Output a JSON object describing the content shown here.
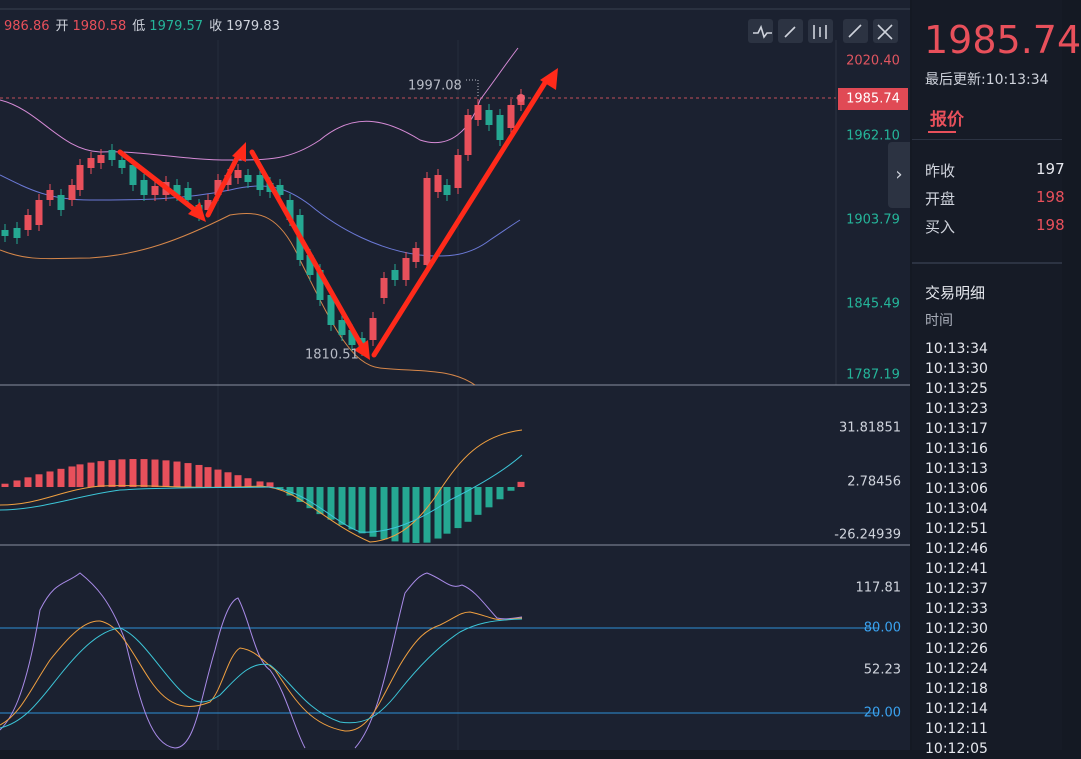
{
  "ohlc": [
    {
      "value": "986.86"
    },
    {
      "label": "开",
      "value": "1980.58"
    },
    {
      "label": "低",
      "value": "1979.57"
    },
    {
      "label": "收",
      "value": "1979.83"
    }
  ],
  "price_axis": [
    "2020.40",
    "1962.10",
    "1903.79",
    "1845.49",
    "1787.19"
  ],
  "current_price_tag": "1985.74",
  "annotations": {
    "high": "1997.08",
    "low": "1810.51"
  },
  "macd_axis": [
    "31.81851",
    "2.78456",
    "-26.24939"
  ],
  "kdj_axis": [
    "117.81",
    "80.00",
    "52.23",
    "20.00"
  ],
  "panel": {
    "price": "1985.74",
    "updated": "最后更新:10:13:34",
    "tab": "报价",
    "quotes": [
      {
        "label": "昨收",
        "value": "197"
      },
      {
        "label": "开盘",
        "value": "198"
      },
      {
        "label": "买入",
        "value": "198"
      }
    ],
    "detail_title": "交易明细",
    "detail_header": "时间",
    "times": [
      "10:13:34",
      "10:13:30",
      "10:13:25",
      "10:13:23",
      "10:13:17",
      "10:13:16",
      "10:13:13",
      "10:13:06",
      "10:13:04",
      "10:12:51",
      "10:12:46",
      "10:12:41",
      "10:12:37",
      "10:12:33",
      "10:12:30",
      "10:12:26",
      "10:12:24",
      "10:12:18",
      "10:12:14",
      "10:12:11",
      "10:12:05"
    ]
  }
}
